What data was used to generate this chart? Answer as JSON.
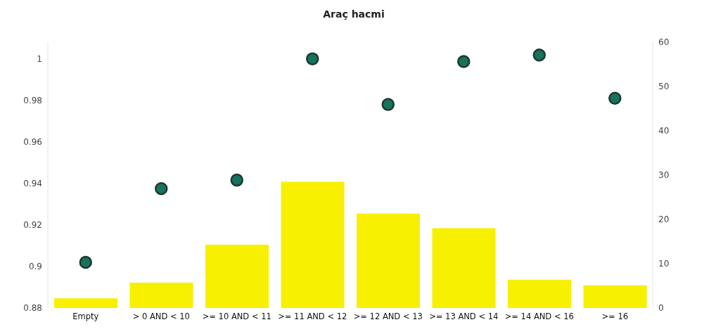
{
  "chart_data": {
    "type": "bar",
    "title": "Araç hacmi",
    "categories": [
      "Empty",
      "> 0 AND < 10",
      ">= 10 AND < 11",
      ">= 11 AND < 12",
      ">= 12 AND < 13",
      ">= 13 AND < 14",
      ">= 14 AND < 16",
      ">= 16"
    ],
    "series": [
      {
        "axis": "y2",
        "color": "#f7f000",
        "values": [
          2.2,
          5.7,
          14.3,
          28.5,
          21.3,
          18,
          6.4,
          5.1
        ]
      },
      {
        "type": "scatter",
        "axis": "y",
        "color": "#16735c",
        "values": [
          0.902,
          0.9375,
          0.9416,
          1.0,
          0.978,
          0.9987,
          1.0018,
          0.981
        ]
      }
    ],
    "ylim": [
      0.88,
      1.008
    ],
    "yticks": [
      0.88,
      0.9,
      0.92,
      0.94,
      0.96,
      0.98,
      1
    ],
    "y2lim": [
      0,
      60
    ],
    "y2ticks": [
      0,
      10,
      20,
      30,
      40,
      50,
      60
    ],
    "marker": "circle",
    "grid": false,
    "legend": false
  }
}
